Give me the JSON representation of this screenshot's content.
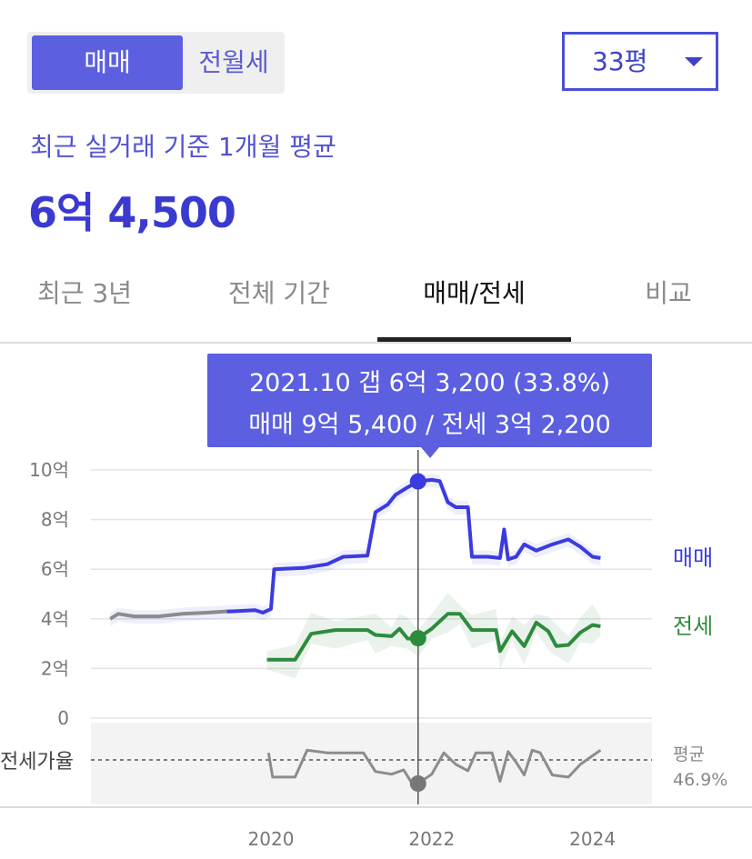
{
  "segment": {
    "active": "매매",
    "inactive": "전월세"
  },
  "size_select": {
    "value": "33평"
  },
  "summary": {
    "subtitle": "최근 실거래 기준 1개월 평균",
    "price": "6억 4,500"
  },
  "tabs": [
    {
      "label": "최근 3년",
      "active": false
    },
    {
      "label": "전체 기간",
      "active": false
    },
    {
      "label": "매매/전세",
      "active": true
    },
    {
      "label": "비교",
      "active": false
    }
  ],
  "tooltip": {
    "line1": "2021.10  갭 6억 3,200 (33.8%)",
    "line2": "매매 9억 5,400 / 전세 3억 2,200"
  },
  "colors": {
    "sale": "#3b3be0",
    "jeonse": "#2e8b3e",
    "ratio": "#8c8c8c",
    "accent": "#5b5fe0"
  },
  "chart_data": {
    "type": "line",
    "y_unit": "억",
    "ylim": [
      0,
      10
    ],
    "y_ticks": [
      "10억",
      "8억",
      "6억",
      "4억",
      "2억",
      "0"
    ],
    "x_ticks": [
      "2020",
      "2022",
      "2024"
    ],
    "legend": [
      "매매",
      "전세"
    ],
    "ratio_label": "전세가율",
    "ratio_avg_label": "평균",
    "ratio_avg_value": "46.9%",
    "series": [
      {
        "name": "매매",
        "points": [
          [
            2018.0,
            4.0
          ],
          [
            2018.1,
            4.2
          ],
          [
            2018.3,
            4.1
          ],
          [
            2018.6,
            4.1
          ],
          [
            2018.9,
            4.2
          ],
          [
            2019.2,
            4.25
          ],
          [
            2019.5,
            4.3
          ],
          [
            2019.8,
            4.35
          ],
          [
            2019.9,
            4.25
          ],
          [
            2020.0,
            4.4
          ],
          [
            2020.04,
            6.0
          ],
          [
            2020.4,
            6.05
          ],
          [
            2020.7,
            6.2
          ],
          [
            2020.9,
            6.5
          ],
          [
            2021.2,
            6.55
          ],
          [
            2021.3,
            8.3
          ],
          [
            2021.45,
            8.6
          ],
          [
            2021.55,
            9.0
          ],
          [
            2021.7,
            9.3
          ],
          [
            2021.83,
            9.54
          ],
          [
            2022.0,
            9.6
          ],
          [
            2022.1,
            9.55
          ],
          [
            2022.2,
            8.7
          ],
          [
            2022.3,
            8.5
          ],
          [
            2022.45,
            8.5
          ],
          [
            2022.5,
            6.5
          ],
          [
            2022.7,
            6.5
          ],
          [
            2022.85,
            6.45
          ],
          [
            2022.9,
            7.6
          ],
          [
            2022.95,
            6.4
          ],
          [
            2023.05,
            6.5
          ],
          [
            2023.15,
            7.0
          ],
          [
            2023.3,
            6.75
          ],
          [
            2023.5,
            7.0
          ],
          [
            2023.7,
            7.2
          ],
          [
            2023.85,
            6.9
          ],
          [
            2024.0,
            6.5
          ],
          [
            2024.1,
            6.45
          ]
        ]
      },
      {
        "name": "전세",
        "points": [
          [
            2019.95,
            2.35
          ],
          [
            2020.3,
            2.35
          ],
          [
            2020.5,
            3.4
          ],
          [
            2020.8,
            3.55
          ],
          [
            2021.2,
            3.55
          ],
          [
            2021.3,
            3.35
          ],
          [
            2021.5,
            3.3
          ],
          [
            2021.6,
            3.6
          ],
          [
            2021.7,
            3.2
          ],
          [
            2021.83,
            3.22
          ],
          [
            2022.0,
            3.6
          ],
          [
            2022.2,
            4.2
          ],
          [
            2022.35,
            4.2
          ],
          [
            2022.5,
            3.55
          ],
          [
            2022.8,
            3.55
          ],
          [
            2022.85,
            2.7
          ],
          [
            2023.0,
            3.5
          ],
          [
            2023.15,
            2.9
          ],
          [
            2023.3,
            3.85
          ],
          [
            2023.45,
            3.5
          ],
          [
            2023.55,
            2.9
          ],
          [
            2023.7,
            2.95
          ],
          [
            2023.85,
            3.45
          ],
          [
            2024.0,
            3.75
          ],
          [
            2024.1,
            3.7
          ]
        ]
      }
    ],
    "ratio_series": {
      "points": [
        [
          2019.97,
          0.72
        ],
        [
          2020.02,
          0.15
        ],
        [
          2020.3,
          0.15
        ],
        [
          2020.45,
          0.78
        ],
        [
          2020.7,
          0.72
        ],
        [
          2021.0,
          0.72
        ],
        [
          2021.15,
          0.72
        ],
        [
          2021.3,
          0.28
        ],
        [
          2021.5,
          0.22
        ],
        [
          2021.65,
          0.32
        ],
        [
          2021.75,
          0.02
        ],
        [
          2021.83,
          0.0
        ],
        [
          2022.0,
          0.22
        ],
        [
          2022.15,
          0.72
        ],
        [
          2022.3,
          0.45
        ],
        [
          2022.45,
          0.3
        ],
        [
          2022.55,
          0.72
        ],
        [
          2022.75,
          0.72
        ],
        [
          2022.85,
          0.05
        ],
        [
          2022.95,
          0.75
        ],
        [
          2023.05,
          0.5
        ],
        [
          2023.15,
          0.2
        ],
        [
          2023.25,
          0.78
        ],
        [
          2023.35,
          0.72
        ],
        [
          2023.5,
          0.2
        ],
        [
          2023.7,
          0.15
        ],
        [
          2023.85,
          0.45
        ],
        [
          2024.0,
          0.65
        ],
        [
          2024.1,
          0.78
        ]
      ]
    },
    "highlight": {
      "x": 2021.83,
      "sale": 9.54,
      "jeonse": 3.22,
      "ratio": 0.0
    }
  }
}
